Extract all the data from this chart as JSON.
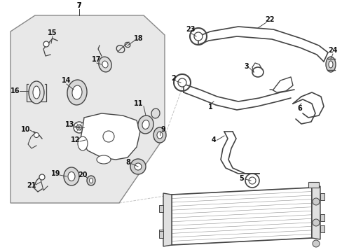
{
  "bg_color": "#ffffff",
  "box_bg": "#e8e8e8",
  "box_border": "#888888",
  "line_color": "#444444",
  "part_color": "#444444",
  "label_color": "#111111",
  "fig_w": 4.89,
  "fig_h": 3.6,
  "dpi": 100
}
